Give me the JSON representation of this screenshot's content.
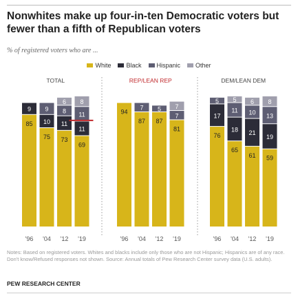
{
  "title": "Nonwhites make up four-in-ten Democratic voters but fewer than a fifth of Republican voters",
  "subtitle": "% of registered voters who are ...",
  "notes": "Notes: Based on registered voters. Whites and blacks include only those who are not Hispanic; Hispanics are of any race. Don't know/Refused responses not shown. Source: Annual totals of Pew Research Center survey data (U.S. adults).",
  "source": "PEW RESEARCH CENTER",
  "colors": {
    "white": "#d7b51a",
    "black": "#2c2c38",
    "hispanic": "#5e5e73",
    "other": "#a09fad",
    "rep_title": "#c0282b",
    "default_title": "#444444",
    "highlight": "#c0282b"
  },
  "chart_data": {
    "type": "bar",
    "stacked": true,
    "legend": [
      "White",
      "Black",
      "Hispanic",
      "Other"
    ],
    "legend_position": "top",
    "ylim": [
      0,
      100
    ],
    "grid": false,
    "panels": [
      {
        "title": "TOTAL",
        "categories": [
          "'96",
          "'04",
          "'12",
          "'19"
        ],
        "series": [
          {
            "name": "White",
            "values": [
              85,
              75,
              73,
              69
            ]
          },
          {
            "name": "Black",
            "values": [
              9,
              10,
              11,
              11
            ]
          },
          {
            "name": "Hispanic",
            "values": [
              null,
              9,
              8,
              11
            ]
          },
          {
            "name": "Other",
            "values": [
              null,
              null,
              6,
              8
            ]
          }
        ],
        "highlight_marker": true
      },
      {
        "title": "REP/LEAN REP",
        "categories": [
          "'96",
          "'04",
          "'12",
          "'19"
        ],
        "series": [
          {
            "name": "White",
            "values": [
              94,
              87,
              87,
              81
            ]
          },
          {
            "name": "Black",
            "values": [
              null,
              null,
              null,
              null
            ]
          },
          {
            "name": "Hispanic",
            "values": [
              null,
              7,
              5,
              7
            ]
          },
          {
            "name": "Other",
            "values": [
              null,
              null,
              null,
              7
            ]
          }
        ]
      },
      {
        "title": "DEM/LEAN DEM",
        "categories": [
          "'96",
          "'04",
          "'12",
          "'19"
        ],
        "series": [
          {
            "name": "White",
            "values": [
              76,
              65,
              61,
              59
            ]
          },
          {
            "name": "Black",
            "values": [
              17,
              18,
              21,
              19
            ]
          },
          {
            "name": "Hispanic",
            "values": [
              5,
              11,
              10,
              13
            ]
          },
          {
            "name": "Other",
            "values": [
              null,
              5,
              6,
              8
            ]
          }
        ]
      }
    ]
  }
}
